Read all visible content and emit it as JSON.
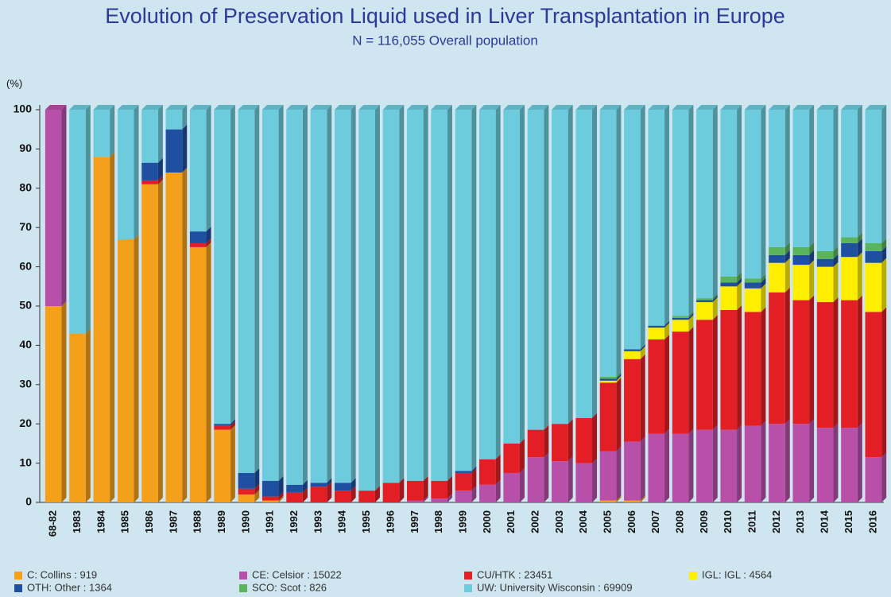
{
  "chart_data": {
    "type": "bar",
    "stacked": true,
    "title": "Evolution of Preservation Liquid used in Liver Transplantation in Europe",
    "subtitle": "N = 116,055 Overall population",
    "y_label": "(%)",
    "categories": [
      "68-82",
      "1983",
      "1984",
      "1985",
      "1986",
      "1987",
      "1988",
      "1989",
      "1990",
      "1991",
      "1992",
      "1993",
      "1994",
      "1995",
      "1996",
      "1997",
      "1998",
      "1999",
      "2000",
      "2001",
      "2002",
      "2003",
      "2004",
      "2005",
      "2006",
      "2007",
      "2008",
      "2009",
      "2010",
      "2011",
      "2012",
      "2013",
      "2014",
      "2015",
      "2016"
    ],
    "ylim": [
      0,
      100
    ],
    "yticks": [
      0,
      10,
      20,
      30,
      40,
      50,
      60,
      70,
      80,
      90,
      100
    ],
    "series": [
      {
        "name": "C: Collins : 919",
        "color": "#f5a01a",
        "values": [
          50,
          43,
          88,
          67,
          81,
          84,
          65,
          18.5,
          2,
          0.5,
          0,
          0,
          0,
          0,
          0,
          0,
          0,
          0,
          0,
          0,
          0,
          0,
          0,
          0.5,
          0.5,
          0,
          0,
          0,
          0,
          0,
          0,
          0,
          0,
          0,
          0
        ]
      },
      {
        "name": "CE: Celsior : 15022",
        "color": "#b84fa8",
        "values": [
          50,
          0,
          0,
          0,
          0,
          0,
          0,
          0,
          0,
          0,
          0,
          0,
          0,
          0,
          0,
          0.5,
          1,
          3,
          4.5,
          7.5,
          11.5,
          10.5,
          10,
          12.5,
          15,
          17.5,
          17.5,
          18.5,
          18.5,
          19.5,
          20,
          20,
          19,
          19,
          11.5
        ]
      },
      {
        "name": "CU/HTK : 23451",
        "color": "#e31e24",
        "values": [
          0,
          0,
          0,
          0,
          1,
          0,
          1,
          1,
          1.5,
          1,
          2.5,
          4,
          3,
          3,
          5,
          5,
          4.5,
          4.5,
          6.5,
          7.5,
          7,
          9.5,
          11.5,
          17.5,
          21,
          24,
          26,
          28,
          30.5,
          29,
          33.5,
          31.5,
          32,
          32.5,
          37
        ]
      },
      {
        "name": "IGL: IGL : 4564",
        "color": "#ffee00",
        "values": [
          0,
          0,
          0,
          0,
          0,
          0,
          0,
          0,
          0,
          0,
          0,
          0,
          0,
          0,
          0,
          0,
          0,
          0,
          0,
          0,
          0,
          0,
          0,
          0.5,
          2,
          3,
          3,
          4.5,
          6,
          6,
          7.5,
          9,
          9,
          11,
          12.5
        ]
      },
      {
        "name": "OTH: Other : 1364",
        "color": "#1f4fa0",
        "values": [
          0,
          0,
          0,
          0,
          4.5,
          11,
          3,
          0.5,
          4,
          4,
          2,
          1,
          2,
          0,
          0,
          0,
          0,
          0.5,
          0,
          0,
          0,
          0,
          0,
          0.5,
          0.5,
          0.5,
          0.5,
          0.5,
          1,
          1.5,
          2,
          2.5,
          2,
          3.5,
          3
        ]
      },
      {
        "name": "SCO: Scot : 826",
        "color": "#5ab45a",
        "values": [
          0,
          0,
          0,
          0,
          0,
          0,
          0,
          0,
          0,
          0,
          0,
          0,
          0,
          0,
          0,
          0,
          0,
          0,
          0,
          0,
          0,
          0,
          0,
          0.5,
          0,
          0,
          0.5,
          0.5,
          1.5,
          1,
          2,
          2,
          2,
          1.5,
          2
        ]
      },
      {
        "name": "UW: University Wisconsin : 69909",
        "color": "#6ccbdc",
        "values": [
          0,
          57,
          12,
          33,
          13.5,
          5,
          31,
          80,
          92.5,
          94.5,
          95.5,
          95,
          95,
          97,
          95,
          94.5,
          94.5,
          92,
          89,
          85,
          81.5,
          80,
          78.5,
          68,
          61,
          55,
          52.5,
          48,
          42.5,
          43,
          35,
          35,
          36,
          32.5,
          34
        ]
      }
    ]
  }
}
